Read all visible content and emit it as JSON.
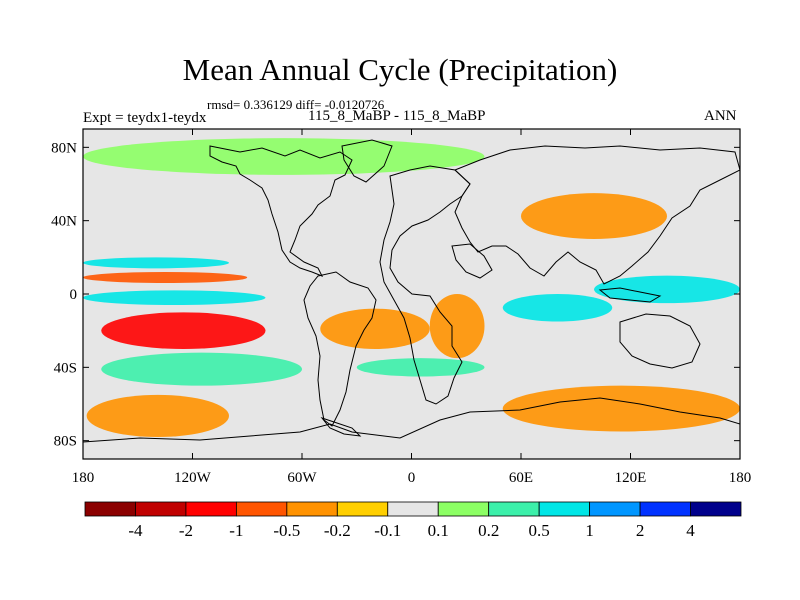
{
  "header": {
    "title": "Mean Annual Cycle (Precipitation)",
    "stats": "rmsd= 0.336129 diff= -0.0120726",
    "experiment": "Expt = teydx1-teydx",
    "period": "115_8_MaBP - 115_8_MaBP",
    "season": "ANN"
  },
  "axes": {
    "y_ticks": [
      {
        "lat": 80,
        "label": "80N"
      },
      {
        "lat": 40,
        "label": "40N"
      },
      {
        "lat": 0,
        "label": "0"
      },
      {
        "lat": -40,
        "label": "40S"
      },
      {
        "lat": -80,
        "label": "80S"
      }
    ],
    "x_ticks": [
      {
        "lon": -180,
        "label": "180"
      },
      {
        "lon": -120,
        "label": "120W"
      },
      {
        "lon": -60,
        "label": "60W"
      },
      {
        "lon": 0,
        "label": "0"
      },
      {
        "lon": 60,
        "label": "60E"
      },
      {
        "lon": 120,
        "label": "120E"
      },
      {
        "lon": 180,
        "label": "180"
      }
    ]
  },
  "colorbar": {
    "colors": [
      "#8b0000",
      "#c00000",
      "#ff0000",
      "#ff5500",
      "#ff9200",
      "#ffcf00",
      "#e6e6e6",
      "#8cff64",
      "#3cf0aa",
      "#00e6e6",
      "#0096ff",
      "#0032ff",
      "#00008c"
    ],
    "labels": [
      "-4",
      "-2",
      "-1",
      "-0.5",
      "-0.2",
      "-0.1",
      "0.1",
      "0.2",
      "0.5",
      "1",
      "2",
      "4"
    ]
  },
  "chart_data": {
    "type": "heatmap",
    "title": "Mean Annual Cycle (Precipitation)",
    "projection": "cylindrical equidistant",
    "lon_range": [
      -180,
      180
    ],
    "lat_range": [
      -90,
      90
    ],
    "levels": [
      -4,
      -2,
      -1,
      -0.5,
      -0.2,
      -0.1,
      0.1,
      0.2,
      0.5,
      1,
      2,
      4
    ],
    "features": [
      {
        "name": "south-pacific-dry-band",
        "lon": [
          -170,
          -80
        ],
        "lat": [
          -30,
          -10
        ],
        "value": -1.5
      },
      {
        "name": "equatorial-pacific-dry-band",
        "lon": [
          -180,
          -90
        ],
        "lat": [
          6,
          12
        ],
        "value": -1
      },
      {
        "name": "north-pacific-wet-band",
        "lon": [
          -180,
          -100
        ],
        "lat": [
          14,
          20
        ],
        "value": 0.7
      },
      {
        "name": "equatorial-pacific-wet-band",
        "lon": [
          -180,
          -80
        ],
        "lat": [
          -6,
          2
        ],
        "value": 0.6
      },
      {
        "name": "south-pacific-wet-band",
        "lon": [
          -170,
          -60
        ],
        "lat": [
          -50,
          -32
        ],
        "value": 0.4
      },
      {
        "name": "southern-ocean-pacific-dry",
        "lon": [
          -178,
          -100
        ],
        "lat": [
          -78,
          -55
        ],
        "value": -0.3
      },
      {
        "name": "south-atlantic-dry",
        "lon": [
          -50,
          10
        ],
        "lat": [
          -30,
          -8
        ],
        "value": -0.4
      },
      {
        "name": "south-atlantic-wet",
        "lon": [
          -30,
          40
        ],
        "lat": [
          -45,
          -35
        ],
        "value": 0.3
      },
      {
        "name": "africa-dry",
        "lon": [
          10,
          40
        ],
        "lat": [
          -35,
          0
        ],
        "value": -0.5
      },
      {
        "name": "eurasia-dry",
        "lon": [
          60,
          140
        ],
        "lat": [
          30,
          55
        ],
        "value": -0.5
      },
      {
        "name": "western-pacific-wet",
        "lon": [
          100,
          180
        ],
        "lat": [
          -5,
          10
        ],
        "value": 0.8
      },
      {
        "name": "indian-ocean-wet",
        "lon": [
          50,
          110
        ],
        "lat": [
          -15,
          0
        ],
        "value": 0.6
      },
      {
        "name": "southern-indian-dry",
        "lon": [
          50,
          180
        ],
        "lat": [
          -75,
          -50
        ],
        "value": -0.3
      },
      {
        "name": "arctic-wet-patches",
        "lon": [
          -180,
          40
        ],
        "lat": [
          65,
          85
        ],
        "value": 0.15
      }
    ]
  }
}
